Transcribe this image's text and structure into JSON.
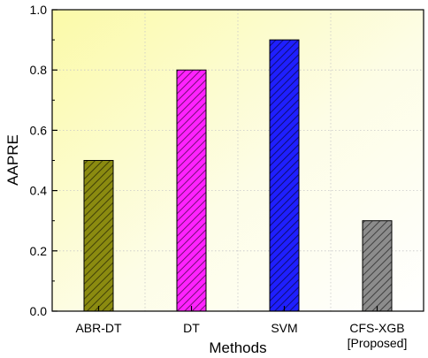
{
  "chart_data": {
    "type": "bar",
    "title": "",
    "xlabel": "Methods",
    "ylabel": "AAPRE",
    "categories": [
      [
        "ABR-DT"
      ],
      [
        "DT"
      ],
      [
        "SVM"
      ],
      [
        "CFS-XGB",
        "[Proposed]"
      ]
    ],
    "values": [
      0.5,
      0.8,
      0.9,
      0.3
    ],
    "bar_colors": [
      "#8b8b10",
      "#ff22ff",
      "#1f1fff",
      "#8c8c8c"
    ],
    "hatch": "diagonal",
    "ylim": [
      0,
      1.0
    ],
    "yticks": [
      "0.0",
      "0.2",
      "0.4",
      "0.6",
      "0.8",
      "1.0"
    ],
    "grid": true,
    "grid_style": "dotted",
    "legend": "none",
    "background": "yellow-to-white gradient"
  }
}
